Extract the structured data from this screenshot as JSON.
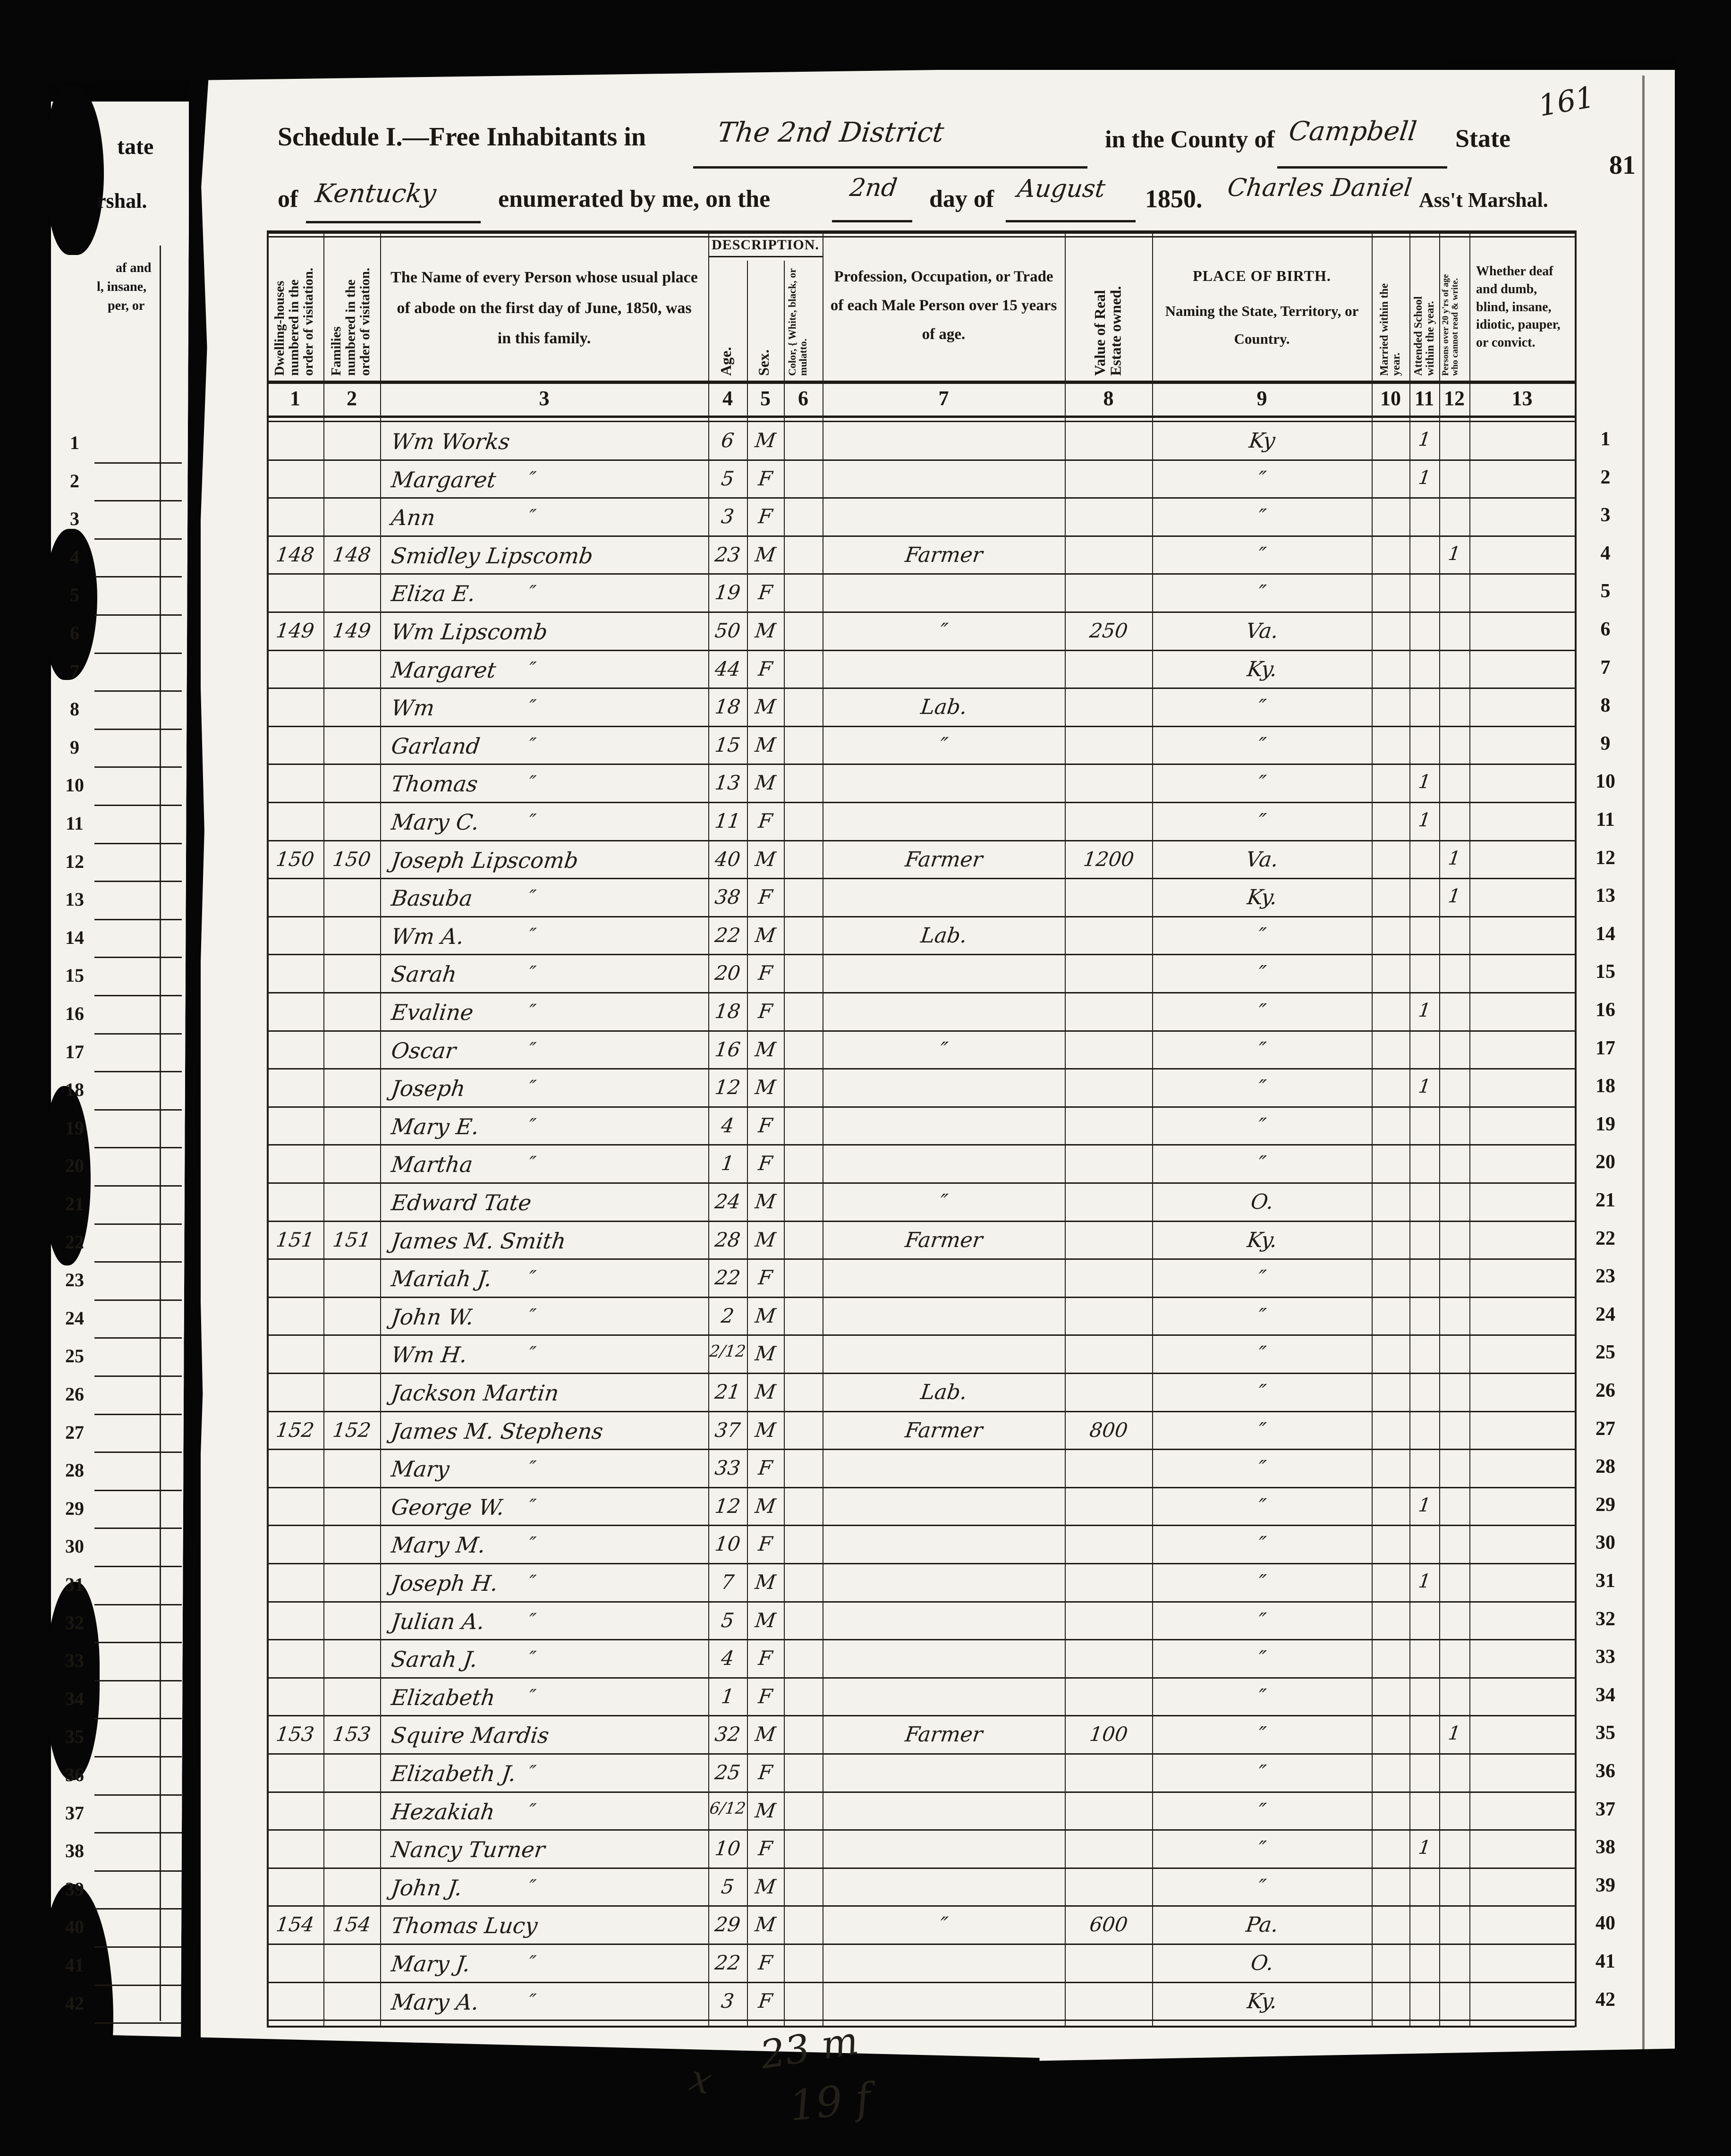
{
  "page": {
    "handwritten_page_number": "161",
    "printed_page_number": "81",
    "bottom_tally": {
      "x_mark": "x",
      "males": "23 m",
      "females": "19 f"
    }
  },
  "title": {
    "schedule_prefix": "Schedule I.—Free Inhabitants in",
    "district_handwritten": "The 2nd District",
    "county_prefix": "in the County of",
    "county_handwritten": "Campbell",
    "state_label": "State",
    "line2_of": "of",
    "state_handwritten": "Kentucky",
    "enumerated_text": "enumerated by me, on the",
    "day_handwritten": "2nd",
    "day_of_text": "day of",
    "month_handwritten": "August",
    "year_text": "1850.",
    "marshal_handwritten": "Charles Daniel",
    "marshal_title": "Ass't Marshal."
  },
  "left_page_fragments": {
    "frag1": "tate",
    "frag2": "rshal.",
    "frag3": "af and",
    "frag4": "l, insane,",
    "frag5": "per, or"
  },
  "table": {
    "description_group_label": "DESCRIPTION.",
    "columns": [
      {
        "num": "1",
        "label": "Dwelling-houses numbered in the order of visitation."
      },
      {
        "num": "2",
        "label": "Families numbered in the order of visitation."
      },
      {
        "num": "3",
        "label": "The Name of every Person whose usual place of abode on the first day of June, 1850, was in this family."
      },
      {
        "num": "4",
        "label": "Age."
      },
      {
        "num": "5",
        "label": "Sex."
      },
      {
        "num": "6",
        "label": "Color, { White, black, or mulatto."
      },
      {
        "num": "7",
        "label": "Profession, Occupation, or Trade of each Male Person over 15 years of age."
      },
      {
        "num": "8",
        "label": "Value of Real Estate owned."
      },
      {
        "num": "9",
        "label": "Place of Birth.",
        "sublabel": "Naming the State, Territory, or Country."
      },
      {
        "num": "10",
        "label": "Married within the year."
      },
      {
        "num": "11",
        "label": "Attended School within the year."
      },
      {
        "num": "12",
        "label": "Persons over 20 y'rs of age who cannot read & write."
      },
      {
        "num": "13",
        "label": "Whether deaf and dumb, blind, insane, idiotic, pauper, or convict."
      }
    ],
    "rows": [
      {
        "n": 1,
        "dw": "",
        "fm": "",
        "nm": "Wm Works",
        "nd": "",
        "ag": "6",
        "sx": "M",
        "oc": "",
        "vl": "",
        "bp": "Ky",
        "m": "",
        "s": "1",
        "r": ""
      },
      {
        "n": 2,
        "dw": "",
        "fm": "",
        "nm": "Margaret",
        "nd": "″",
        "ag": "5",
        "sx": "F",
        "oc": "",
        "vl": "",
        "bp": "″",
        "m": "",
        "s": "1",
        "r": ""
      },
      {
        "n": 3,
        "dw": "",
        "fm": "",
        "nm": "Ann",
        "nd": "″",
        "ag": "3",
        "sx": "F",
        "oc": "",
        "vl": "",
        "bp": "″",
        "m": "",
        "s": "",
        "r": ""
      },
      {
        "n": 4,
        "dw": "148",
        "fm": "148",
        "nm": "Smidley Lipscomb",
        "nd": "",
        "ag": "23",
        "sx": "M",
        "oc": "Farmer",
        "vl": "",
        "bp": "″",
        "m": "",
        "s": "",
        "r": "1"
      },
      {
        "n": 5,
        "dw": "",
        "fm": "",
        "nm": "Eliza E.",
        "nd": "″",
        "ag": "19",
        "sx": "F",
        "oc": "",
        "vl": "",
        "bp": "″",
        "m": "",
        "s": "",
        "r": ""
      },
      {
        "n": 6,
        "dw": "149",
        "fm": "149",
        "nm": "Wm Lipscomb",
        "nd": "",
        "ag": "50",
        "sx": "M",
        "oc": "″",
        "vl": "250",
        "bp": "Va.",
        "m": "",
        "s": "",
        "r": ""
      },
      {
        "n": 7,
        "dw": "",
        "fm": "",
        "nm": "Margaret",
        "nd": "″",
        "ag": "44",
        "sx": "F",
        "oc": "",
        "vl": "",
        "bp": "Ky.",
        "m": "",
        "s": "",
        "r": ""
      },
      {
        "n": 8,
        "dw": "",
        "fm": "",
        "nm": "Wm",
        "nd": "″",
        "ag": "18",
        "sx": "M",
        "oc": "Lab.",
        "vl": "",
        "bp": "″",
        "m": "",
        "s": "",
        "r": ""
      },
      {
        "n": 9,
        "dw": "",
        "fm": "",
        "nm": "Garland",
        "nd": "″",
        "ag": "15",
        "sx": "M",
        "oc": "″",
        "vl": "",
        "bp": "″",
        "m": "",
        "s": "",
        "r": ""
      },
      {
        "n": 10,
        "dw": "",
        "fm": "",
        "nm": "Thomas",
        "nd": "″",
        "ag": "13",
        "sx": "M",
        "oc": "",
        "vl": "",
        "bp": "″",
        "m": "",
        "s": "1",
        "r": ""
      },
      {
        "n": 11,
        "dw": "",
        "fm": "",
        "nm": "Mary C.",
        "nd": "″",
        "ag": "11",
        "sx": "F",
        "oc": "",
        "vl": "",
        "bp": "″",
        "m": "",
        "s": "1",
        "r": ""
      },
      {
        "n": 12,
        "dw": "150",
        "fm": "150",
        "nm": "Joseph Lipscomb",
        "nd": "",
        "ag": "40",
        "sx": "M",
        "oc": "Farmer",
        "vl": "1200",
        "bp": "Va.",
        "m": "",
        "s": "",
        "r": "1"
      },
      {
        "n": 13,
        "dw": "",
        "fm": "",
        "nm": "Basuba",
        "nd": "″",
        "ag": "38",
        "sx": "F",
        "oc": "",
        "vl": "",
        "bp": "Ky.",
        "m": "",
        "s": "",
        "r": "1"
      },
      {
        "n": 14,
        "dw": "",
        "fm": "",
        "nm": "Wm A.",
        "nd": "″",
        "ag": "22",
        "sx": "M",
        "oc": "Lab.",
        "vl": "",
        "bp": "″",
        "m": "",
        "s": "",
        "r": ""
      },
      {
        "n": 15,
        "dw": "",
        "fm": "",
        "nm": "Sarah",
        "nd": "″",
        "ag": "20",
        "sx": "F",
        "oc": "",
        "vl": "",
        "bp": "″",
        "m": "",
        "s": "",
        "r": ""
      },
      {
        "n": 16,
        "dw": "",
        "fm": "",
        "nm": "Evaline",
        "nd": "″",
        "ag": "18",
        "sx": "F",
        "oc": "",
        "vl": "",
        "bp": "″",
        "m": "",
        "s": "1",
        "r": ""
      },
      {
        "n": 17,
        "dw": "",
        "fm": "",
        "nm": "Oscar",
        "nd": "″",
        "ag": "16",
        "sx": "M",
        "oc": "″",
        "vl": "",
        "bp": "″",
        "m": "",
        "s": "",
        "r": ""
      },
      {
        "n": 18,
        "dw": "",
        "fm": "",
        "nm": "Joseph",
        "nd": "″",
        "ag": "12",
        "sx": "M",
        "oc": "",
        "vl": "",
        "bp": "″",
        "m": "",
        "s": "1",
        "r": ""
      },
      {
        "n": 19,
        "dw": "",
        "fm": "",
        "nm": "Mary E.",
        "nd": "″",
        "ag": "4",
        "sx": "F",
        "oc": "",
        "vl": "",
        "bp": "″",
        "m": "",
        "s": "",
        "r": ""
      },
      {
        "n": 20,
        "dw": "",
        "fm": "",
        "nm": "Martha",
        "nd": "″",
        "ag": "1",
        "sx": "F",
        "oc": "",
        "vl": "",
        "bp": "″",
        "m": "",
        "s": "",
        "r": ""
      },
      {
        "n": 21,
        "dw": "",
        "fm": "",
        "nm": "Edward Tate",
        "nd": "",
        "ag": "24",
        "sx": "M",
        "oc": "″",
        "vl": "",
        "bp": "O.",
        "m": "",
        "s": "",
        "r": ""
      },
      {
        "n": 22,
        "dw": "151",
        "fm": "151",
        "nm": "James M. Smith",
        "nd": "",
        "ag": "28",
        "sx": "M",
        "oc": "Farmer",
        "vl": "",
        "bp": "Ky.",
        "m": "",
        "s": "",
        "r": ""
      },
      {
        "n": 23,
        "dw": "",
        "fm": "",
        "nm": "Mariah J.",
        "nd": "″",
        "ag": "22",
        "sx": "F",
        "oc": "",
        "vl": "",
        "bp": "″",
        "m": "",
        "s": "",
        "r": ""
      },
      {
        "n": 24,
        "dw": "",
        "fm": "",
        "nm": "John W.",
        "nd": "″",
        "ag": "2",
        "sx": "M",
        "oc": "",
        "vl": "",
        "bp": "″",
        "m": "",
        "s": "",
        "r": ""
      },
      {
        "n": 25,
        "dw": "",
        "fm": "",
        "nm": "Wm H.",
        "nd": "″",
        "ag": "2/12",
        "sx": "M",
        "oc": "",
        "vl": "",
        "bp": "″",
        "m": "",
        "s": "",
        "r": ""
      },
      {
        "n": 26,
        "dw": "",
        "fm": "",
        "nm": "Jackson Martin",
        "nd": "",
        "ag": "21",
        "sx": "M",
        "oc": "Lab.",
        "vl": "",
        "bp": "″",
        "m": "",
        "s": "",
        "r": ""
      },
      {
        "n": 27,
        "dw": "152",
        "fm": "152",
        "nm": "James M. Stephens",
        "nd": "",
        "ag": "37",
        "sx": "M",
        "oc": "Farmer",
        "vl": "800",
        "bp": "″",
        "m": "",
        "s": "",
        "r": ""
      },
      {
        "n": 28,
        "dw": "",
        "fm": "",
        "nm": "Mary",
        "nd": "″",
        "ag": "33",
        "sx": "F",
        "oc": "",
        "vl": "",
        "bp": "″",
        "m": "",
        "s": "",
        "r": ""
      },
      {
        "n": 29,
        "dw": "",
        "fm": "",
        "nm": "George W.",
        "nd": "″",
        "ag": "12",
        "sx": "M",
        "oc": "",
        "vl": "",
        "bp": "″",
        "m": "",
        "s": "1",
        "r": ""
      },
      {
        "n": 30,
        "dw": "",
        "fm": "",
        "nm": "Mary M.",
        "nd": "″",
        "ag": "10",
        "sx": "F",
        "oc": "",
        "vl": "",
        "bp": "″",
        "m": "",
        "s": "",
        "r": ""
      },
      {
        "n": 31,
        "dw": "",
        "fm": "",
        "nm": "Joseph H.",
        "nd": "″",
        "ag": "7",
        "sx": "M",
        "oc": "",
        "vl": "",
        "bp": "″",
        "m": "",
        "s": "1",
        "r": ""
      },
      {
        "n": 32,
        "dw": "",
        "fm": "",
        "nm": "Julian A.",
        "nd": "″",
        "ag": "5",
        "sx": "M",
        "oc": "",
        "vl": "",
        "bp": "″",
        "m": "",
        "s": "",
        "r": ""
      },
      {
        "n": 33,
        "dw": "",
        "fm": "",
        "nm": "Sarah J.",
        "nd": "″",
        "ag": "4",
        "sx": "F",
        "oc": "",
        "vl": "",
        "bp": "″",
        "m": "",
        "s": "",
        "r": ""
      },
      {
        "n": 34,
        "dw": "",
        "fm": "",
        "nm": "Elizabeth",
        "nd": "″",
        "ag": "1",
        "sx": "F",
        "oc": "",
        "vl": "",
        "bp": "″",
        "m": "",
        "s": "",
        "r": ""
      },
      {
        "n": 35,
        "dw": "153",
        "fm": "153",
        "nm": "Squire Mardis",
        "nd": "",
        "ag": "32",
        "sx": "M",
        "oc": "Farmer",
        "vl": "100",
        "bp": "″",
        "m": "",
        "s": "",
        "r": "1"
      },
      {
        "n": 36,
        "dw": "",
        "fm": "",
        "nm": "Elizabeth J.",
        "nd": "″",
        "ag": "25",
        "sx": "F",
        "oc": "",
        "vl": "",
        "bp": "″",
        "m": "",
        "s": "",
        "r": ""
      },
      {
        "n": 37,
        "dw": "",
        "fm": "",
        "nm": "Hezakiah",
        "nd": "″",
        "ag": "6/12",
        "sx": "M",
        "oc": "",
        "vl": "",
        "bp": "″",
        "m": "",
        "s": "",
        "r": ""
      },
      {
        "n": 38,
        "dw": "",
        "fm": "",
        "nm": "Nancy Turner",
        "nd": "",
        "ag": "10",
        "sx": "F",
        "oc": "",
        "vl": "",
        "bp": "″",
        "m": "",
        "s": "1",
        "r": ""
      },
      {
        "n": 39,
        "dw": "",
        "fm": "",
        "nm": "John J.",
        "nd": "″",
        "ag": "5",
        "sx": "M",
        "oc": "",
        "vl": "",
        "bp": "″",
        "m": "",
        "s": "",
        "r": ""
      },
      {
        "n": 40,
        "dw": "154",
        "fm": "154",
        "nm": "Thomas Lucy",
        "nd": "",
        "ag": "29",
        "sx": "M",
        "oc": "″",
        "vl": "600",
        "bp": "Pa.",
        "m": "",
        "s": "",
        "r": ""
      },
      {
        "n": 41,
        "dw": "",
        "fm": "",
        "nm": "Mary J.",
        "nd": "″",
        "ag": "22",
        "sx": "F",
        "oc": "",
        "vl": "",
        "bp": "O.",
        "m": "",
        "s": "",
        "r": ""
      },
      {
        "n": 42,
        "dw": "",
        "fm": "",
        "nm": "Mary A.",
        "nd": "″",
        "ag": "3",
        "sx": "F",
        "oc": "",
        "vl": "",
        "bp": "Ky.",
        "m": "",
        "s": "",
        "r": ""
      }
    ]
  }
}
